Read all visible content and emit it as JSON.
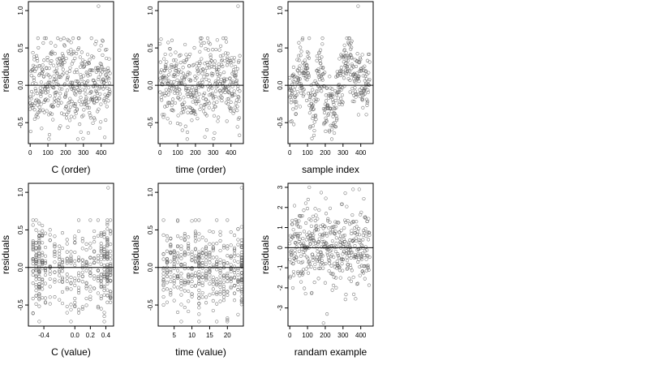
{
  "figure": {
    "layout": "2x3 grid of scatter panels",
    "point_style": "open circles, dark gray",
    "reference_line": "horizontal line at y = 0",
    "point_color": "#555555",
    "line_color": "#000000"
  },
  "chart_data": [
    {
      "type": "scatter",
      "xlabel": "C (order)",
      "ylabel": "residuals",
      "xlim": [
        -10,
        470
      ],
      "ylim": [
        -0.78,
        1.12
      ],
      "xticks": [
        0,
        100,
        200,
        300,
        400
      ],
      "xtick_labels": [
        "0",
        "100",
        "200",
        "300",
        "400"
      ],
      "yticks": [
        -0.5,
        0.0,
        0.5,
        1.0
      ],
      "ytick_labels": [
        "-0.5",
        "0.0",
        "0.5",
        "1.0"
      ],
      "hline": 0,
      "grid": false,
      "legend": "none",
      "pattern": {
        "kind": "uniform",
        "n": 440,
        "x_range": [
          0,
          450
        ],
        "y_mean": 0.0,
        "y_sd": 0.28,
        "y_clip": [
          -0.72,
          0.63
        ],
        "seed": 11
      },
      "highlighted_points": [
        {
          "x": 385,
          "y": 1.06
        }
      ]
    },
    {
      "type": "scatter",
      "xlabel": "time (order)",
      "ylabel": "residuals",
      "xlim": [
        -10,
        470
      ],
      "ylim": [
        -0.78,
        1.12
      ],
      "xticks": [
        0,
        100,
        200,
        300,
        400
      ],
      "xtick_labels": [
        "0",
        "100",
        "200",
        "300",
        "400"
      ],
      "yticks": [
        -0.5,
        0.0,
        0.5,
        1.0
      ],
      "ytick_labels": [
        "-0.5",
        "0.0",
        "0.5",
        "1.0"
      ],
      "hline": 0,
      "grid": false,
      "legend": "none",
      "pattern": {
        "kind": "uniform",
        "n": 440,
        "x_range": [
          0,
          450
        ],
        "y_mean": 0.0,
        "y_sd": 0.28,
        "y_clip": [
          -0.72,
          0.63
        ],
        "seed": 23
      },
      "highlighted_points": [
        {
          "x": 440,
          "y": 1.06
        }
      ]
    },
    {
      "type": "scatter",
      "xlabel": "sample index",
      "ylabel": "residuals",
      "xlim": [
        -10,
        470
      ],
      "ylim": [
        -0.78,
        1.12
      ],
      "xticks": [
        0,
        100,
        200,
        300,
        400
      ],
      "xtick_labels": [
        "0",
        "100",
        "200",
        "300",
        "400"
      ],
      "yticks": [
        -0.5,
        0.0,
        0.5,
        1.0
      ],
      "ytick_labels": [
        "-0.5",
        "0.0",
        "0.5",
        "1.0"
      ],
      "hline": 0,
      "grid": false,
      "legend": "none",
      "pattern": {
        "kind": "blocks",
        "n": 440,
        "x_range": [
          0,
          450
        ],
        "y_sd": 0.15,
        "y_clip": [
          -0.72,
          0.63
        ],
        "seed": 37,
        "blocks": [
          {
            "x": [
              0,
              45
            ],
            "mean": -0.05
          },
          {
            "x": [
              45,
              110
            ],
            "mean": 0.2
          },
          {
            "x": [
              110,
              150
            ],
            "mean": -0.28
          },
          {
            "x": [
              150,
              190
            ],
            "mean": 0.2
          },
          {
            "x": [
              190,
              265
            ],
            "mean": -0.3
          },
          {
            "x": [
              265,
              300
            ],
            "mean": 0.0
          },
          {
            "x": [
              300,
              350
            ],
            "mean": 0.35
          },
          {
            "x": [
              350,
              410
            ],
            "mean": 0.1
          },
          {
            "x": [
              410,
              450
            ],
            "mean": 0.0
          }
        ]
      },
      "highlighted_points": [
        {
          "x": 385,
          "y": 1.06
        }
      ]
    },
    {
      "type": "scatter",
      "xlabel": "C (value)",
      "ylabel": "residuals",
      "xlim": [
        -0.6,
        0.5
      ],
      "ylim": [
        -0.78,
        1.12
      ],
      "xticks": [
        -0.4,
        0.0,
        0.2,
        0.4
      ],
      "xtick_labels": [
        "-0.4",
        "0.0",
        "0.2",
        "0.4"
      ],
      "yticks": [
        -0.5,
        0.0,
        0.5,
        1.0
      ],
      "ytick_labels": [
        "-0.5",
        "0.0",
        "0.5",
        "1.0"
      ],
      "hline": 0,
      "grid": false,
      "legend": "none",
      "pattern": {
        "kind": "columns",
        "n": 440,
        "y_mean": 0.0,
        "y_sd": 0.28,
        "y_clip": [
          -0.72,
          0.63
        ],
        "seed": 53,
        "columns": [
          -0.54,
          -0.5,
          -0.46,
          -0.42,
          -0.38,
          -0.32,
          -0.26,
          -0.2,
          -0.16,
          -0.1,
          -0.05,
          0.0,
          0.05,
          0.1,
          0.15,
          0.2,
          0.25,
          0.3,
          0.34,
          0.38,
          0.42,
          0.46
        ],
        "column_weights": [
          3,
          4,
          6,
          3,
          2,
          2,
          2,
          2,
          2,
          2,
          2,
          2,
          2,
          2,
          2,
          2,
          2,
          2,
          3,
          4,
          6,
          4
        ]
      },
      "highlighted_points": [
        {
          "x": 0.43,
          "y": 1.06
        }
      ]
    },
    {
      "type": "scatter",
      "xlabel": "time (value)",
      "ylabel": "residuals",
      "xlim": [
        0.5,
        24.5
      ],
      "ylim": [
        -0.78,
        1.12
      ],
      "xticks": [
        5,
        10,
        15,
        20
      ],
      "xtick_labels": [
        "5",
        "10",
        "15",
        "20"
      ],
      "yticks": [
        -0.5,
        0.0,
        0.5,
        1.0
      ],
      "ytick_labels": [
        "-0.5",
        "0.0",
        "0.5",
        "1.0"
      ],
      "hline": 0,
      "grid": false,
      "legend": "none",
      "pattern": {
        "kind": "columns",
        "n": 440,
        "y_mean": 0.0,
        "y_sd": 0.28,
        "y_clip": [
          -0.72,
          0.63
        ],
        "seed": 71,
        "columns": [
          2,
          3,
          4,
          5,
          6,
          7,
          8,
          9,
          10,
          11,
          12,
          13,
          14,
          15,
          16,
          17,
          18,
          19,
          20,
          21,
          22,
          23,
          24
        ],
        "column_weights": [
          2,
          2,
          2,
          2,
          2,
          2,
          2,
          2,
          2,
          2,
          4,
          2,
          2,
          2,
          2,
          2,
          2,
          2,
          2,
          2,
          2,
          2,
          5
        ]
      },
      "highlighted_points": [
        {
          "x": 24,
          "y": 1.06
        }
      ]
    },
    {
      "type": "scatter",
      "xlabel": "randam example",
      "ylabel": "residuals",
      "xlim": [
        -10,
        470
      ],
      "ylim": [
        -3.9,
        3.2
      ],
      "xticks": [
        0,
        100,
        200,
        300,
        400
      ],
      "xtick_labels": [
        "0",
        "100",
        "200",
        "300",
        "400"
      ],
      "yticks": [
        -3,
        -2,
        -1,
        0,
        1,
        2,
        3
      ],
      "ytick_labels": [
        "-3",
        "-2",
        "-1",
        "0",
        "1",
        "2",
        "3"
      ],
      "hline": 0,
      "grid": false,
      "legend": "none",
      "pattern": {
        "kind": "uniform",
        "n": 440,
        "x_range": [
          0,
          450
        ],
        "y_mean": 0.0,
        "y_sd": 1.0,
        "y_clip": [
          -2.6,
          2.9
        ],
        "seed": 97
      },
      "highlighted_points": [
        {
          "x": 110,
          "y": 3.0
        },
        {
          "x": 210,
          "y": -3.3
        },
        {
          "x": 190,
          "y": -3.75
        }
      ]
    }
  ]
}
